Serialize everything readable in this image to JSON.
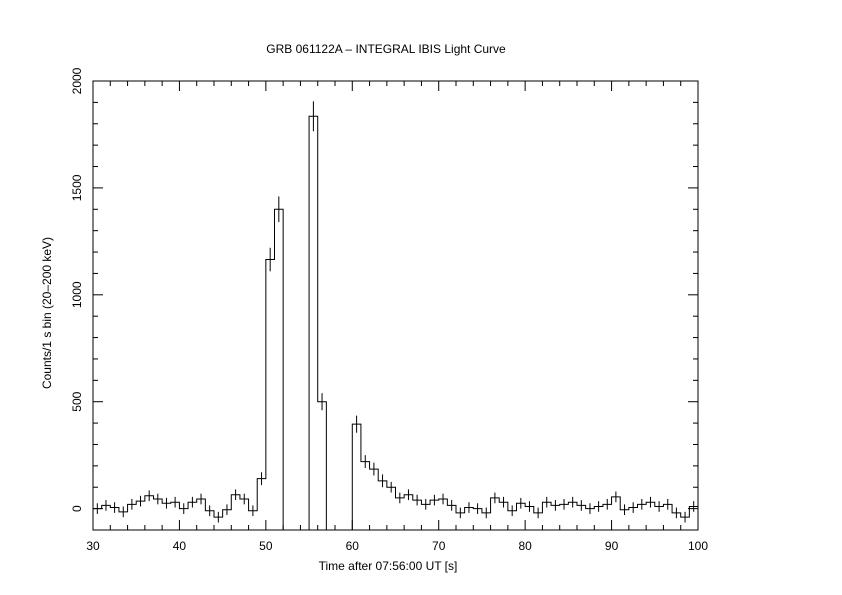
{
  "chart_data": {
    "type": "histogram",
    "title": "GRB 061122A – INTEGRAL IBIS Light Curve",
    "xlabel": "Time after 07:56:00 UT [s]",
    "ylabel": "Counts/1 s bin (20–200 keV)",
    "xlim": [
      30,
      100
    ],
    "ylim": [
      -100,
      2000
    ],
    "x_ticks": [
      30,
      40,
      50,
      60,
      70,
      80,
      90,
      100
    ],
    "y_ticks": [
      0,
      500,
      1000,
      1500,
      2000
    ],
    "grid": false,
    "line_color": "#000000",
    "bin_width": 1,
    "series": [
      {
        "x": [
          30,
          31,
          32,
          33,
          34,
          35,
          36,
          37,
          38,
          39,
          40,
          41,
          42,
          43,
          44,
          45,
          46,
          47,
          48,
          49,
          50,
          51,
          52,
          53,
          54,
          55,
          56,
          57,
          58,
          59,
          60,
          61,
          62,
          63,
          64,
          65,
          66,
          67,
          68,
          69,
          70,
          71,
          72,
          73,
          74,
          75,
          76,
          77,
          78,
          79,
          80,
          81,
          82,
          83,
          84,
          85,
          86,
          87,
          88,
          89,
          90,
          91,
          92,
          93,
          94,
          95,
          96,
          97,
          98,
          99
        ],
        "y": [
          0,
          15,
          5,
          -15,
          20,
          35,
          60,
          45,
          25,
          30,
          0,
          30,
          45,
          -10,
          -40,
          -5,
          65,
          45,
          -10,
          140,
          1165,
          1400,
          -100,
          -100,
          -100,
          1835,
          500,
          -100,
          -100,
          -100,
          395,
          220,
          185,
          130,
          100,
          50,
          65,
          40,
          20,
          40,
          45,
          15,
          -20,
          5,
          0,
          -20,
          50,
          30,
          -10,
          25,
          10,
          -20,
          30,
          15,
          20,
          30,
          15,
          0,
          10,
          20,
          55,
          -5,
          5,
          20,
          30,
          10,
          20,
          -20,
          -40,
          10
        ],
        "err": [
          25,
          25,
          25,
          25,
          25,
          25,
          25,
          25,
          25,
          25,
          25,
          25,
          25,
          25,
          25,
          25,
          25,
          25,
          25,
          30,
          55,
          60,
          0,
          0,
          0,
          70,
          40,
          0,
          0,
          0,
          40,
          30,
          30,
          30,
          25,
          25,
          25,
          25,
          25,
          25,
          25,
          25,
          25,
          25,
          25,
          25,
          25,
          25,
          25,
          25,
          25,
          25,
          25,
          25,
          25,
          25,
          25,
          25,
          25,
          25,
          25,
          25,
          25,
          25,
          25,
          25,
          25,
          25,
          25,
          25
        ]
      }
    ]
  }
}
